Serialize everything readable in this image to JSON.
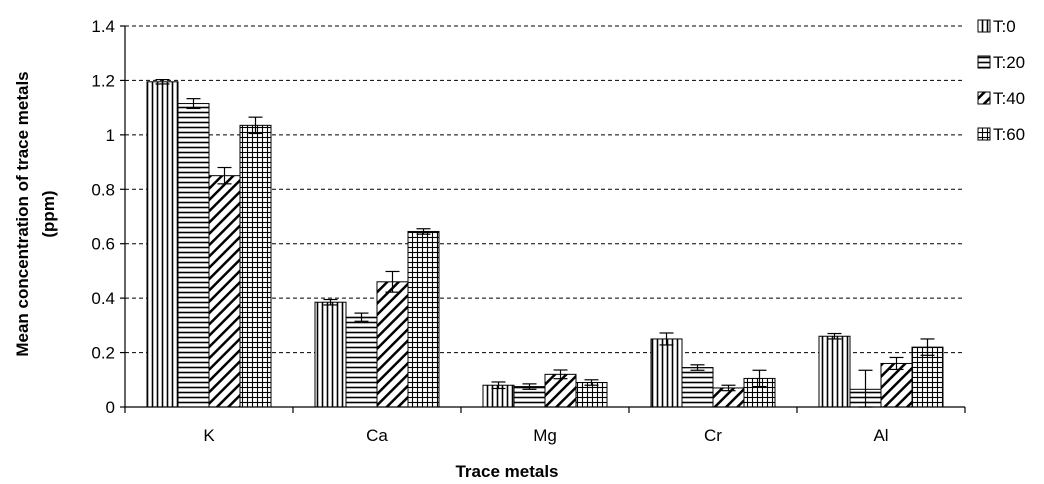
{
  "chart_data": {
    "type": "bar",
    "title": "",
    "xlabel": "Trace metals",
    "ylabel": "Mean concentration of trace metals (ppm)",
    "ylabel_lines": [
      "Mean concentration of trace metals",
      "(ppm)"
    ],
    "ylim": [
      0,
      1.4
    ],
    "yticks": [
      "0",
      "0.2",
      "0.4",
      "0.6",
      "0.8",
      "1",
      "1.2",
      "1.4"
    ],
    "ytick_values": [
      0,
      0.2,
      0.4,
      0.6,
      0.8,
      1.0,
      1.2,
      1.4
    ],
    "grid": "horizontal dashed",
    "legend_position": "right",
    "categories": [
      "K",
      "Ca",
      "Mg",
      "Cr",
      "Al"
    ],
    "series": [
      {
        "name": "T:0",
        "pattern": "vertical-lines",
        "values": [
          1.195,
          0.385,
          0.08,
          0.25,
          0.26
        ],
        "errors": [
          0.008,
          0.01,
          0.012,
          0.022,
          0.01
        ]
      },
      {
        "name": "T:20",
        "pattern": "horizontal-lines",
        "values": [
          1.115,
          0.33,
          0.075,
          0.145,
          0.065
        ],
        "errors": [
          0.018,
          0.015,
          0.01,
          0.01,
          0.07
        ]
      },
      {
        "name": "T:40",
        "pattern": "diagonal-lines",
        "values": [
          0.85,
          0.46,
          0.12,
          0.07,
          0.16
        ],
        "errors": [
          0.03,
          0.038,
          0.016,
          0.01,
          0.022
        ]
      },
      {
        "name": "T:60",
        "pattern": "grid",
        "values": [
          1.035,
          0.645,
          0.09,
          0.105,
          0.22
        ],
        "errors": [
          0.03,
          0.01,
          0.01,
          0.03,
          0.03
        ]
      }
    ]
  }
}
